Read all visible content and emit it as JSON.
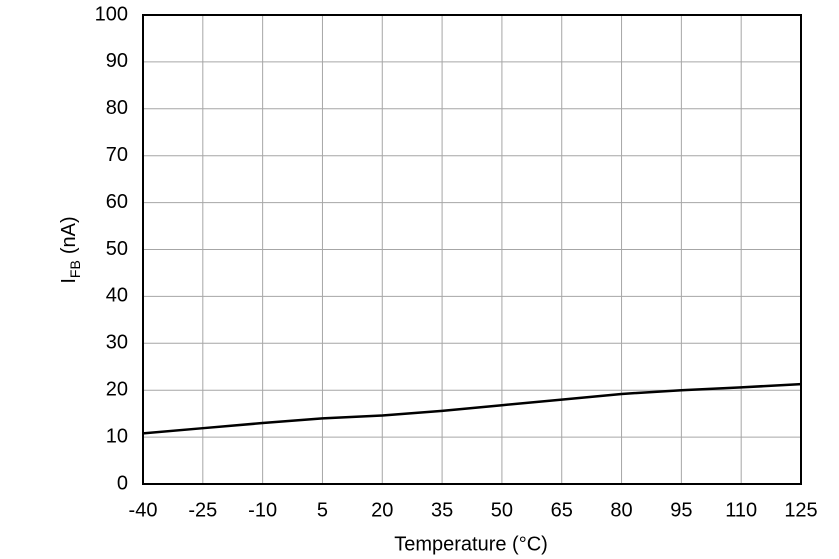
{
  "chart_data": {
    "type": "line",
    "x_label": "Temperature (°C)",
    "y_label": "I",
    "y_label_sub": "FB",
    "y_label_unit": "(nA)",
    "x": [
      -40,
      -25,
      -10,
      5,
      20,
      35,
      50,
      65,
      80,
      95,
      110,
      125
    ],
    "series": [
      {
        "name": "IFB",
        "color": "#000000",
        "values": [
          10.8,
          11.9,
          13.0,
          14.0,
          14.6,
          15.6,
          16.8,
          18.0,
          19.2,
          20.0,
          20.6,
          21.3
        ]
      }
    ],
    "xlim": [
      -40,
      125
    ],
    "xticks": [
      -40,
      -25,
      -10,
      5,
      20,
      35,
      50,
      65,
      80,
      95,
      110,
      125
    ],
    "ylim": [
      0,
      100
    ],
    "yticks": [
      0,
      10,
      20,
      30,
      40,
      50,
      60,
      70,
      80,
      90,
      100
    ],
    "grid": true
  }
}
